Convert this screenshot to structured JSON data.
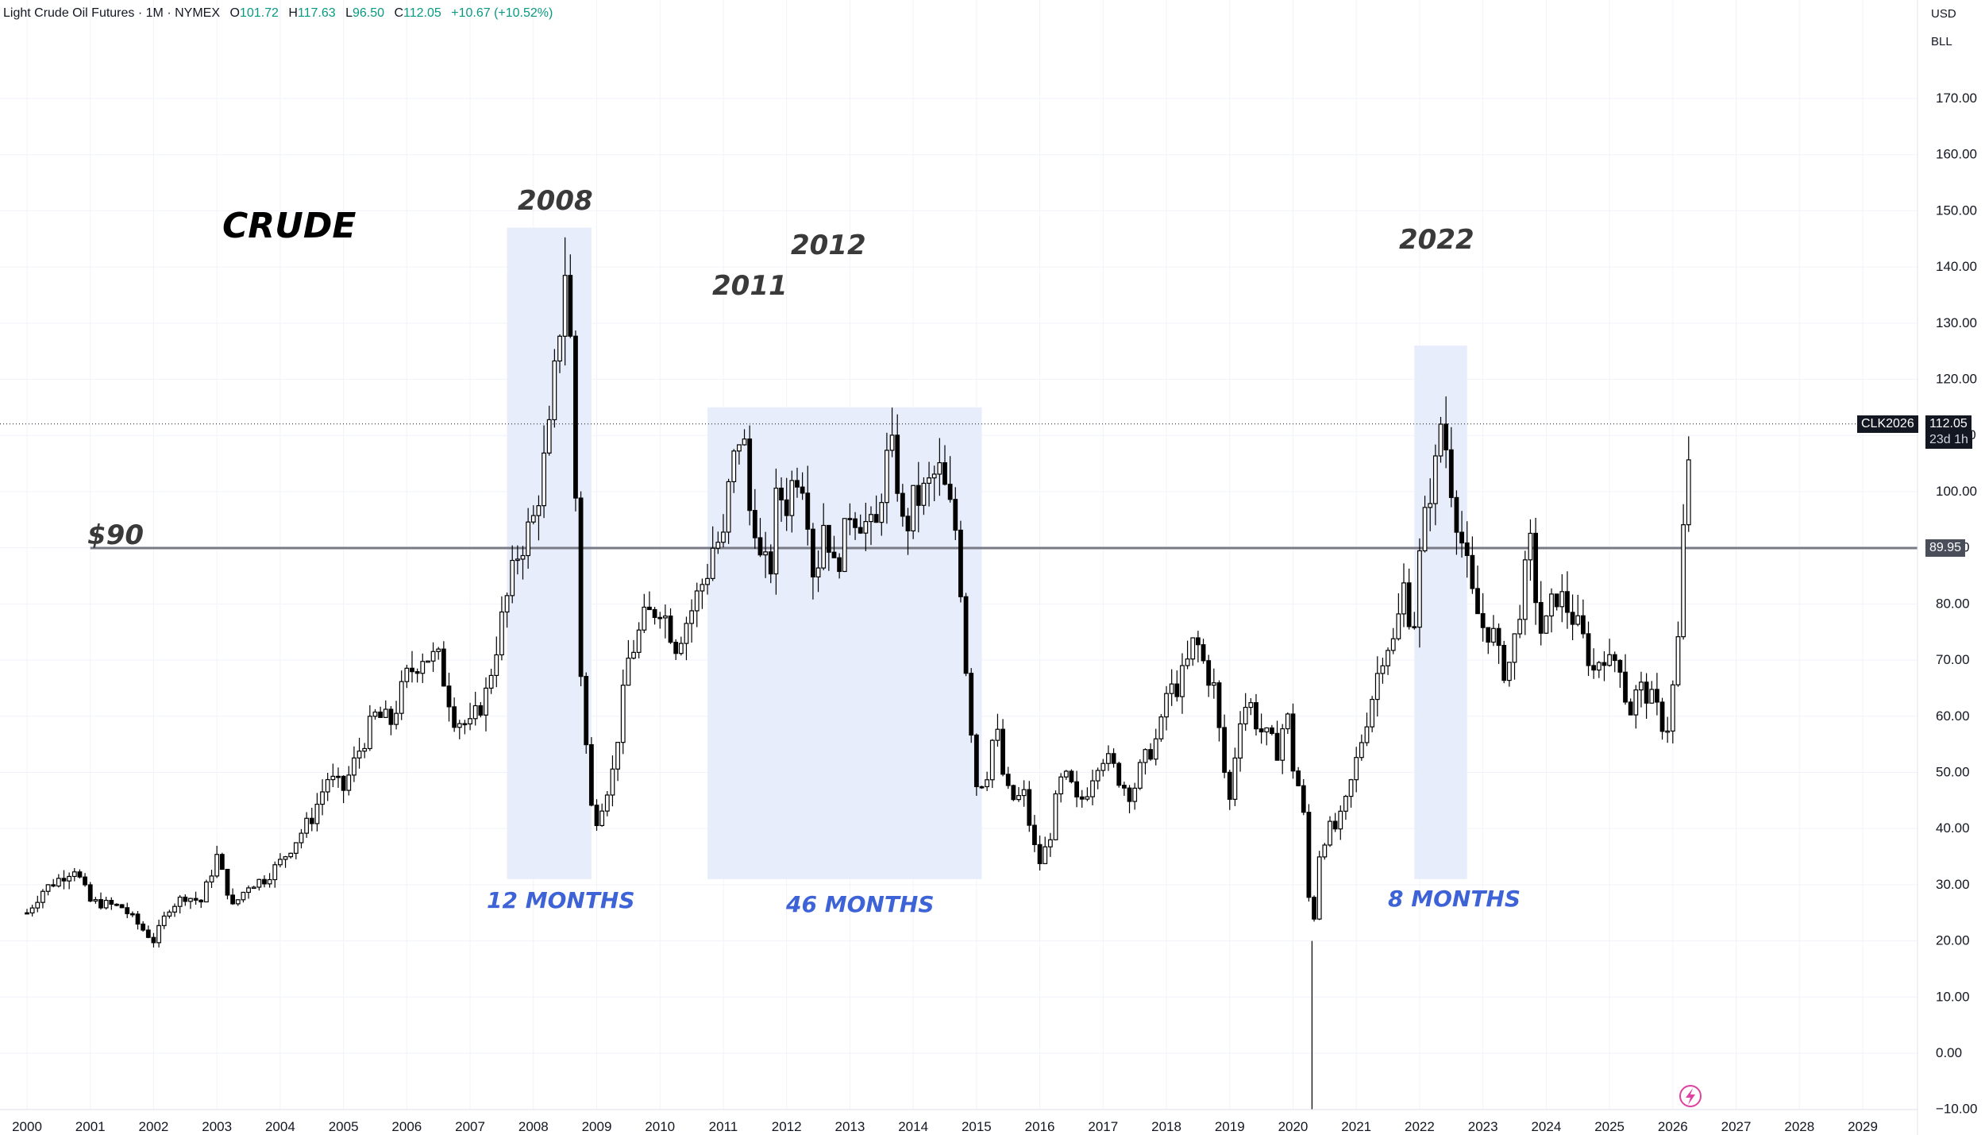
{
  "header": {
    "symbol_name": "Light Crude Oil Futures",
    "interval": "1M",
    "exchange": "NYMEX",
    "open_label": "O",
    "open": "101.72",
    "high_label": "H",
    "high": "117.63",
    "low_label": "L",
    "low": "96.50",
    "close_label": "C",
    "close": "112.05",
    "change": "+10.67 (+10.52%)"
  },
  "scale": {
    "currency": "USD",
    "unit": "BLL"
  },
  "price_tags": {
    "symbol": "CLK2026",
    "last_price": "112.05",
    "countdown": "23d 1h",
    "line_price": "89.95"
  },
  "colors": {
    "candle": "#000000",
    "highlight": "#e8edfb",
    "annotation_blue": "#3d63d6",
    "annotation_gray": "#3a3a3a",
    "hline": "#787b86"
  },
  "annotations": {
    "title": "CRUDE",
    "level_label": "$90",
    "year_2008": "2008",
    "year_2011": "2011",
    "year_2012": "2012",
    "year_2022": "2022",
    "dur_1": "12 MONTHS",
    "dur_2": "46 MONTHS",
    "dur_3": "8 MONTHS"
  },
  "chart_data": {
    "type": "candlestick",
    "title": "Light Crude Oil Futures · 1M · NYMEX",
    "ylim": [
      -10,
      175
    ],
    "y_ticks": [
      "170.00",
      "160.00",
      "150.00",
      "140.00",
      "130.00",
      "120.00",
      "110.00",
      "100.00",
      "90.00",
      "80.00",
      "70.00",
      "60.00",
      "50.00",
      "40.00",
      "30.00",
      "20.00",
      "10.00",
      "0.00",
      "−10.00"
    ],
    "x_ticks": [
      "2000",
      "2001",
      "2002",
      "2003",
      "2004",
      "2005",
      "2006",
      "2007",
      "2008",
      "2009",
      "2010",
      "2011",
      "2012",
      "2013",
      "2014",
      "2015",
      "2016",
      "2017",
      "2018",
      "2019",
      "2020",
      "2021",
      "2022",
      "2023",
      "2024",
      "2025",
      "2026",
      "2027",
      "2028",
      "2029"
    ],
    "horizontal_line": {
      "value": 89.95,
      "label": "$90"
    },
    "highlight_ranges": [
      {
        "start": "2007-08",
        "end": "2008-12",
        "ymin": 31,
        "ymax": 147,
        "label": "12 MONTHS"
      },
      {
        "start": "2010-10",
        "end": "2015-02",
        "ymin": 31,
        "ymax": 115,
        "label": "46 MONTHS"
      },
      {
        "start": "2021-12",
        "end": "2022-10",
        "ymin": 31,
        "ymax": 126,
        "label": "8 MONTHS"
      }
    ],
    "series": [
      {
        "name": "CLK2026",
        "close": [
          [
            2000.0,
            25
          ],
          [
            2000.25,
            29
          ],
          [
            2000.5,
            31
          ],
          [
            2000.75,
            33
          ],
          [
            2001.0,
            27
          ],
          [
            2001.5,
            26
          ],
          [
            2002.0,
            20
          ],
          [
            2002.25,
            26
          ],
          [
            2002.5,
            28
          ],
          [
            2002.75,
            27
          ],
          [
            2003.0,
            35
          ],
          [
            2003.25,
            26
          ],
          [
            2003.5,
            30
          ],
          [
            2003.75,
            31
          ],
          [
            2004.0,
            34
          ],
          [
            2004.25,
            38
          ],
          [
            2004.5,
            42
          ],
          [
            2004.75,
            49
          ],
          [
            2005.0,
            47
          ],
          [
            2005.25,
            54
          ],
          [
            2005.5,
            60
          ],
          [
            2005.75,
            59
          ],
          [
            2006.0,
            67
          ],
          [
            2006.25,
            71
          ],
          [
            2006.5,
            70
          ],
          [
            2006.75,
            60
          ],
          [
            2007.0,
            58
          ],
          [
            2007.25,
            64
          ],
          [
            2007.5,
            77
          ],
          [
            2007.75,
            89
          ],
          [
            2008.0,
            95
          ],
          [
            2008.25,
            110
          ],
          [
            2008.5,
            140
          ],
          [
            2008.6,
            124
          ],
          [
            2008.75,
            68
          ],
          [
            2008.9,
            44
          ],
          [
            2009.0,
            42
          ],
          [
            2009.25,
            50
          ],
          [
            2009.5,
            70
          ],
          [
            2009.75,
            77
          ],
          [
            2010.0,
            80
          ],
          [
            2010.25,
            73
          ],
          [
            2010.5,
            79
          ],
          [
            2010.75,
            86
          ],
          [
            2010.85,
            91
          ],
          [
            2011.0,
            91
          ],
          [
            2011.1,
            102
          ],
          [
            2011.2,
            107
          ],
          [
            2011.3,
            113
          ],
          [
            2011.4,
            97
          ],
          [
            2011.5,
            95
          ],
          [
            2011.6,
            86
          ],
          [
            2011.75,
            87
          ],
          [
            2011.85,
            100
          ],
          [
            2012.0,
            98
          ],
          [
            2012.15,
            104
          ],
          [
            2012.3,
            102
          ],
          [
            2012.4,
            86
          ],
          [
            2012.5,
            88
          ],
          [
            2012.6,
            96
          ],
          [
            2012.75,
            86
          ],
          [
            2012.9,
            91
          ],
          [
            2013.0,
            97
          ],
          [
            2013.2,
            95
          ],
          [
            2013.4,
            92
          ],
          [
            2013.55,
            105
          ],
          [
            2013.7,
            107
          ],
          [
            2013.85,
            92
          ],
          [
            2014.0,
            98
          ],
          [
            2014.2,
            100
          ],
          [
            2014.4,
            104
          ],
          [
            2014.55,
            98
          ],
          [
            2014.7,
            92
          ],
          [
            2014.85,
            66
          ],
          [
            2015.0,
            48
          ],
          [
            2015.15,
            49
          ],
          [
            2015.3,
            59
          ],
          [
            2015.45,
            47
          ],
          [
            2015.6,
            45
          ],
          [
            2015.75,
            46
          ],
          [
            2015.9,
            37
          ],
          [
            2016.0,
            34
          ],
          [
            2016.15,
            38
          ],
          [
            2016.3,
            48
          ],
          [
            2016.45,
            49
          ],
          [
            2016.6,
            44
          ],
          [
            2016.75,
            47
          ],
          [
            2016.9,
            52
          ],
          [
            2017.0,
            53
          ],
          [
            2017.15,
            51
          ],
          [
            2017.3,
            48
          ],
          [
            2017.45,
            46
          ],
          [
            2017.6,
            51
          ],
          [
            2017.75,
            54
          ],
          [
            2017.9,
            57
          ],
          [
            2018.0,
            64
          ],
          [
            2018.15,
            65
          ],
          [
            2018.3,
            68
          ],
          [
            2018.45,
            74
          ],
          [
            2018.6,
            69
          ],
          [
            2018.75,
            65
          ],
          [
            2018.9,
            51
          ],
          [
            2019.0,
            45
          ],
          [
            2019.15,
            60
          ],
          [
            2019.3,
            63
          ],
          [
            2019.45,
            58
          ],
          [
            2019.6,
            56
          ],
          [
            2019.75,
            54
          ],
          [
            2019.9,
            61
          ],
          [
            2020.0,
            51
          ],
          [
            2020.15,
            45
          ],
          [
            2020.3,
            19
          ],
          [
            2020.4,
            35
          ],
          [
            2020.55,
            40
          ],
          [
            2020.7,
            40
          ],
          [
            2020.85,
            45
          ],
          [
            2021.0,
            52
          ],
          [
            2021.15,
            59
          ],
          [
            2021.3,
            66
          ],
          [
            2021.45,
            73
          ],
          [
            2021.6,
            73
          ],
          [
            2021.75,
            83
          ],
          [
            2021.9,
            75
          ],
          [
            2022.0,
            88
          ],
          [
            2022.15,
            100
          ],
          [
            2022.25,
            104
          ],
          [
            2022.35,
            114
          ],
          [
            2022.45,
            105
          ],
          [
            2022.55,
            98
          ],
          [
            2022.7,
            89
          ],
          [
            2022.85,
            80
          ],
          [
            2023.0,
            76
          ],
          [
            2023.15,
            75
          ],
          [
            2023.3,
            68
          ],
          [
            2023.45,
            70
          ],
          [
            2023.6,
            81
          ],
          [
            2023.75,
            90
          ],
          [
            2023.9,
            75
          ],
          [
            2024.0,
            76
          ],
          [
            2024.15,
            82
          ],
          [
            2024.3,
            80
          ],
          [
            2024.45,
            77
          ],
          [
            2024.6,
            73
          ],
          [
            2024.75,
            68
          ],
          [
            2024.9,
            72
          ],
          [
            2025.0,
            69
          ],
          [
            2025.15,
            71
          ],
          [
            2025.3,
            60
          ],
          [
            2025.45,
            65
          ],
          [
            2025.6,
            64
          ],
          [
            2025.75,
            61
          ],
          [
            2025.9,
            57
          ],
          [
            2026.0,
            65
          ],
          [
            2026.1,
            75
          ],
          [
            2026.2,
            101
          ],
          [
            2026.3,
            112.05
          ]
        ]
      }
    ]
  }
}
